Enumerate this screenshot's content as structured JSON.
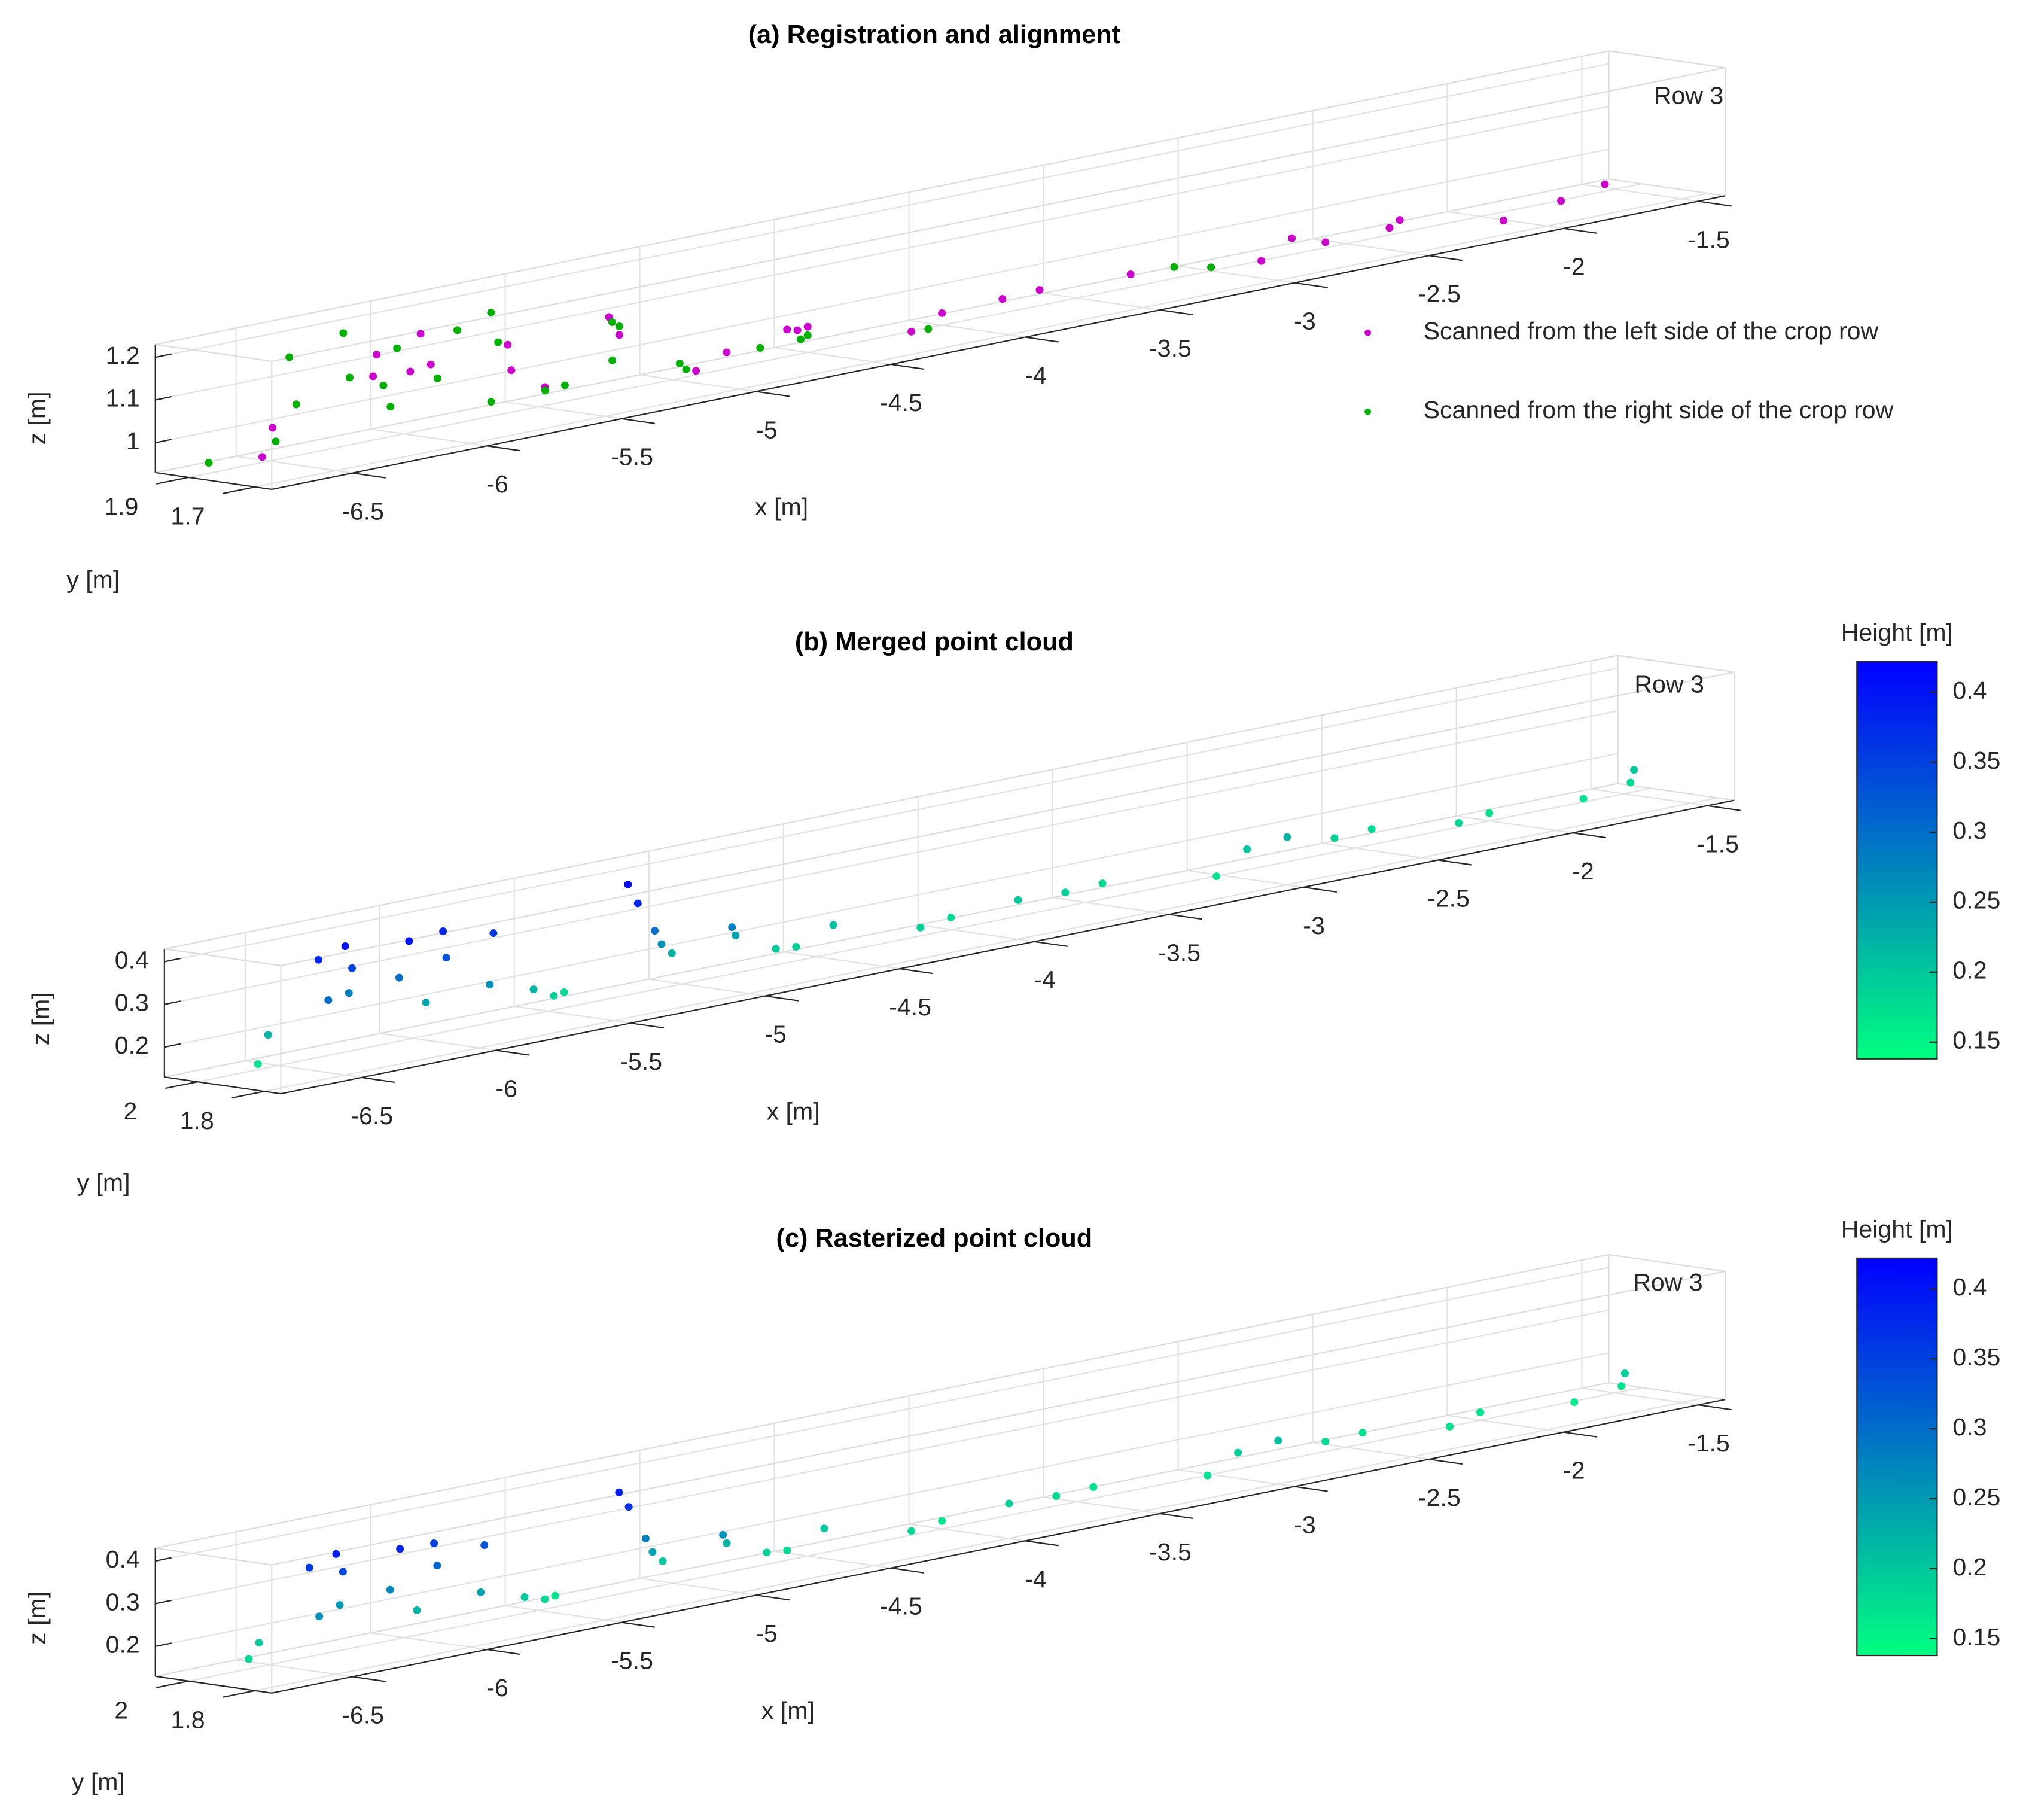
{
  "chart_data": [
    {
      "type": "scatter3",
      "title": "(a) Registration and alignment",
      "annotation": "Row 3",
      "xlabel": "x [m]",
      "ylabel": "y [m]",
      "zlabel": "z [m]",
      "xlim": [
        -6.8,
        -1.4
      ],
      "ylim": [
        1.65,
        2.0
      ],
      "zlim": [
        0.93,
        1.23
      ],
      "xticks": [
        -6.5,
        -6,
        -5.5,
        -5,
        -4.5,
        -4,
        -3.5,
        -3,
        -2.5,
        -2,
        -1.5
      ],
      "yticks": [
        1.7,
        1.9
      ],
      "zticks": [
        1,
        1.1,
        1.2
      ],
      "grid": true,
      "legend": "east",
      "series": [
        {
          "name": "Scanned from the left side of the crop row",
          "color": "#cc00cc",
          "x": [
            -6.65,
            -6.55,
            -6.4,
            -6.3,
            -6.2,
            -6.1,
            -6.0,
            -5.9,
            -5.8,
            -5.7,
            -5.6,
            -5.3,
            -5.2,
            -5.1,
            -4.9,
            -4.7,
            -4.6,
            -4.5,
            -4.3,
            -4.1,
            -3.9,
            -3.7,
            -3.3,
            -3.0,
            -2.8,
            -2.7,
            -2.4,
            -2.3,
            -2.1,
            -1.8,
            -1.6
          ],
          "y": [
            1.8,
            1.85,
            1.9,
            1.75,
            1.82,
            1.8,
            1.85,
            1.9,
            1.75,
            1.82,
            1.8,
            1.85,
            1.9,
            1.75,
            1.82,
            1.8,
            1.85,
            1.9,
            1.75,
            1.82,
            1.8,
            1.85,
            1.9,
            1.75,
            1.82,
            1.8,
            1.85,
            1.9,
            1.75,
            1.82,
            1.85
          ],
          "z": [
            0.97,
            1.02,
            1.05,
            1.12,
            1.15,
            1.1,
            1.17,
            1.08,
            1.13,
            1.05,
            1.0,
            1.12,
            1.06,
            0.98,
            0.99,
            1.02,
            1.0,
            0.99,
            0.97,
            0.98,
            0.99,
            0.98,
            0.96,
            0.97,
            0.99,
            0.97,
            0.96,
            0.96,
            0.95,
            0.95,
            0.96
          ]
        },
        {
          "name": "Scanned from the right side of the crop row",
          "color": "#00b000",
          "x": [
            -6.75,
            -6.6,
            -6.5,
            -6.4,
            -6.35,
            -6.25,
            -6.2,
            -6.1,
            -6.05,
            -5.95,
            -5.9,
            -5.8,
            -5.75,
            -5.65,
            -5.55,
            -5.5,
            -5.35,
            -5.3,
            -5.2,
            -5.1,
            -5.0,
            -4.8,
            -4.6,
            -4.5,
            -4.2,
            -3.2,
            -3.1
          ],
          "y": [
            1.88,
            1.8,
            1.84,
            1.9,
            1.78,
            1.88,
            1.8,
            1.84,
            1.9,
            1.78,
            1.88,
            1.8,
            1.84,
            1.9,
            1.78,
            1.88,
            1.8,
            1.84,
            1.9,
            1.78,
            1.88,
            1.8,
            1.84,
            1.9,
            1.78,
            1.85,
            1.82
          ],
          "z": [
            0.96,
            1.0,
            1.18,
            1.05,
            1.12,
            1.2,
            1.08,
            1.15,
            1.0,
            1.18,
            1.05,
            1.2,
            0.98,
            1.1,
            1.0,
            0.97,
            1.12,
            1.02,
            1.08,
            0.98,
            0.97,
            0.99,
            0.98,
            0.97,
            0.96,
            0.97,
            0.96
          ]
        }
      ]
    },
    {
      "type": "scatter3",
      "title": "(b) Merged point cloud",
      "annotation": "Row 3",
      "xlabel": "x [m]",
      "ylabel": "y [m]",
      "zlabel": "z [m]",
      "xlim": [
        -6.8,
        -1.4
      ],
      "ylim": [
        1.75,
        2.1
      ],
      "zlim": [
        0.13,
        0.43
      ],
      "xticks": [
        -6.5,
        -6,
        -5.5,
        -5,
        -4.5,
        -4,
        -3.5,
        -3,
        -2.5,
        -2,
        -1.5
      ],
      "yticks": [
        1.8,
        2
      ],
      "zticks": [
        0.2,
        0.3,
        0.4
      ],
      "grid": true,
      "colormap": [
        "#00ff80",
        "#0000ff"
      ],
      "colorbar": {
        "label": "Height [m]",
        "clim": [
          0.138,
          0.422
        ],
        "ticks": [
          0.15,
          0.2,
          0.25,
          0.3,
          0.35,
          0.4
        ]
      },
      "series": [
        {
          "x": [
            -6.7,
            -6.6,
            -6.5,
            -6.45,
            -6.4,
            -6.35,
            -6.3,
            -6.2,
            -6.15,
            -6.1,
            -6.0,
            -5.95,
            -5.9,
            -5.8,
            -5.7,
            -5.6,
            -5.5,
            -5.35,
            -5.3,
            -5.25,
            -5.2,
            -5.1,
            -5.0,
            -4.9,
            -4.8,
            -4.7,
            -4.5,
            -4.3,
            -4.1,
            -3.9,
            -3.7,
            -3.5,
            -3.2,
            -3.0,
            -2.9,
            -2.7,
            -2.5,
            -2.3,
            -2.1,
            -1.8,
            -1.6,
            -1.55
          ],
          "y": [
            1.9,
            1.95,
            1.85,
            1.92,
            1.88,
            1.9,
            1.95,
            1.85,
            1.92,
            1.88,
            1.9,
            1.95,
            1.85,
            1.92,
            1.88,
            1.9,
            1.95,
            1.85,
            1.92,
            1.88,
            1.9,
            1.95,
            1.85,
            1.92,
            1.88,
            1.9,
            1.95,
            1.85,
            1.92,
            1.88,
            1.9,
            1.95,
            1.85,
            1.92,
            1.88,
            1.9,
            1.95,
            1.85,
            1.92,
            1.88,
            1.9,
            1.93
          ],
          "z": [
            0.17,
            0.22,
            0.3,
            0.38,
            0.41,
            0.35,
            0.28,
            0.4,
            0.3,
            0.24,
            0.33,
            0.38,
            0.26,
            0.36,
            0.22,
            0.19,
            0.18,
            0.38,
            0.41,
            0.3,
            0.26,
            0.22,
            0.28,
            0.24,
            0.2,
            0.19,
            0.21,
            0.19,
            0.18,
            0.2,
            0.19,
            0.18,
            0.17,
            0.2,
            0.22,
            0.19,
            0.18,
            0.18,
            0.17,
            0.17,
            0.18,
            0.2
          ]
        }
      ]
    },
    {
      "type": "scatter3",
      "title": "(c) Rasterized point cloud",
      "annotation": "Row 3",
      "xlabel": "x [m]",
      "ylabel": "y [m]",
      "zlabel": "z [m]",
      "xlim": [
        -6.8,
        -1.4
      ],
      "ylim": [
        1.75,
        2.1
      ],
      "zlim": [
        0.13,
        0.43
      ],
      "xticks": [
        -6.5,
        -6,
        -5.5,
        -5,
        -4.5,
        -4,
        -3.5,
        -3,
        -2.5,
        -2,
        -1.5
      ],
      "yticks": [
        1.8,
        2
      ],
      "zticks": [
        0.2,
        0.3,
        0.4
      ],
      "grid": true,
      "colormap": [
        "#00ff80",
        "#0000ff"
      ],
      "colorbar": {
        "label": "Height [m]",
        "clim": [
          0.138,
          0.422
        ],
        "ticks": [
          0.15,
          0.2,
          0.25,
          0.3,
          0.35,
          0.4
        ]
      },
      "series": [
        {
          "x": [
            -6.7,
            -6.6,
            -6.5,
            -6.45,
            -6.4,
            -6.35,
            -6.3,
            -6.2,
            -6.15,
            -6.1,
            -6.0,
            -5.95,
            -5.9,
            -5.8,
            -5.7,
            -5.6,
            -5.5,
            -5.35,
            -5.3,
            -5.25,
            -5.2,
            -5.1,
            -5.0,
            -4.9,
            -4.8,
            -4.7,
            -4.5,
            -4.3,
            -4.1,
            -3.9,
            -3.7,
            -3.5,
            -3.2,
            -3.0,
            -2.9,
            -2.7,
            -2.5,
            -2.3,
            -2.1,
            -1.8,
            -1.6,
            -1.55
          ],
          "y": [
            1.9,
            1.95,
            1.85,
            1.92,
            1.88,
            1.9,
            1.95,
            1.85,
            1.92,
            1.88,
            1.9,
            1.95,
            1.85,
            1.92,
            1.88,
            1.9,
            1.95,
            1.85,
            1.92,
            1.88,
            1.9,
            1.95,
            1.85,
            1.92,
            1.88,
            1.9,
            1.95,
            1.85,
            1.92,
            1.88,
            1.9,
            1.95,
            1.85,
            1.92,
            1.88,
            1.9,
            1.95,
            1.85,
            1.92,
            1.88,
            1.9,
            1.93
          ],
          "z": [
            0.18,
            0.2,
            0.26,
            0.36,
            0.39,
            0.34,
            0.25,
            0.38,
            0.27,
            0.22,
            0.31,
            0.35,
            0.24,
            0.33,
            0.2,
            0.18,
            0.17,
            0.37,
            0.39,
            0.28,
            0.24,
            0.2,
            0.26,
            0.22,
            0.19,
            0.18,
            0.2,
            0.18,
            0.17,
            0.19,
            0.18,
            0.17,
            0.17,
            0.19,
            0.21,
            0.18,
            0.17,
            0.17,
            0.17,
            0.16,
            0.17,
            0.19
          ]
        }
      ]
    }
  ]
}
